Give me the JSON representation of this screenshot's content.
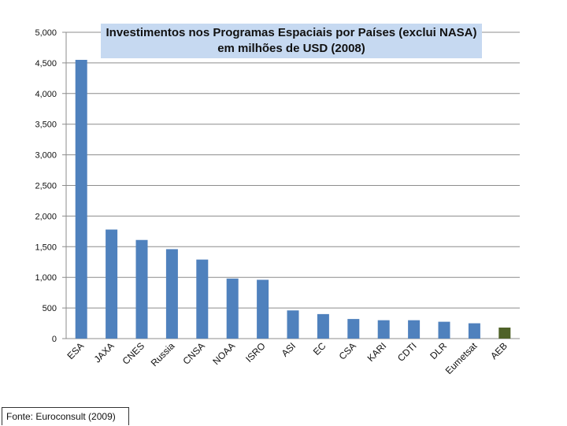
{
  "chart_data": {
    "type": "bar",
    "title_line1": "Investimentos nos Programas Espaciais por Países (exclui NASA)",
    "title_line2": "em milhões de USD (2008)",
    "xlabel": "",
    "ylabel": "",
    "ylim": [
      0,
      5000
    ],
    "yticks": [
      0,
      500,
      1000,
      1500,
      2000,
      2500,
      3000,
      3500,
      4000,
      4500,
      5000
    ],
    "ytick_labels": [
      "0",
      "500",
      "1,000",
      "1,500",
      "2,000",
      "2,500",
      "3,000",
      "3,500",
      "4,000",
      "4,500",
      "5,000"
    ],
    "grid": true,
    "categories": [
      "ESA",
      "JAXA",
      "CNES",
      "Russia",
      "CNSA",
      "NOAA",
      "ISRO",
      "ASI",
      "EC",
      "CSA",
      "KARI",
      "CDTI",
      "DLR",
      "Eumetsat",
      "AEB"
    ],
    "values": [
      4550,
      1780,
      1610,
      1460,
      1290,
      980,
      960,
      460,
      400,
      320,
      300,
      300,
      275,
      250,
      180
    ],
    "bar_colors": [
      "#4f81bd",
      "#4f81bd",
      "#4f81bd",
      "#4f81bd",
      "#4f81bd",
      "#4f81bd",
      "#4f81bd",
      "#4f81bd",
      "#4f81bd",
      "#4f81bd",
      "#4f81bd",
      "#4f81bd",
      "#4f81bd",
      "#4f81bd",
      "#4f6228"
    ],
    "source": "Fonte: Euroconsult (2009)"
  }
}
